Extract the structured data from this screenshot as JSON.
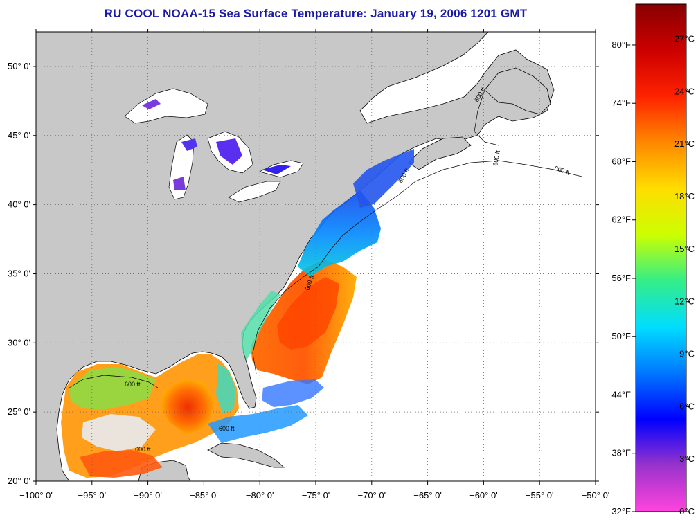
{
  "title": "RU COOL  NOAA-15  Sea Surface Temperature:  January 19, 2006 1201 GMT",
  "map": {
    "lon_range": [
      -100,
      -50
    ],
    "lat_range": [
      20,
      52.5
    ],
    "lon_ticks": [
      {
        "v": -100,
        "label": "−100° 0'"
      },
      {
        "v": -95,
        "label": "−95° 0'"
      },
      {
        "v": -90,
        "label": "−90° 0'"
      },
      {
        "v": -85,
        "label": "−85° 0'"
      },
      {
        "v": -80,
        "label": "−80° 0'"
      },
      {
        "v": -75,
        "label": "−75° 0'"
      },
      {
        "v": -70,
        "label": "−70° 0'"
      },
      {
        "v": -65,
        "label": "−65° 0'"
      },
      {
        "v": -60,
        "label": "−60° 0'"
      },
      {
        "v": -55,
        "label": "−55° 0'"
      },
      {
        "v": -50,
        "label": "−50° 0'"
      }
    ],
    "lat_ticks": [
      {
        "v": 50,
        "label": "50° 0'"
      },
      {
        "v": 45,
        "label": "45° 0'"
      },
      {
        "v": 40,
        "label": "40° 0'"
      },
      {
        "v": 35,
        "label": "35° 0'"
      },
      {
        "v": 30,
        "label": "30° 0'"
      },
      {
        "v": 25,
        "label": "25° 0'"
      },
      {
        "v": 20,
        "label": "20° 0'"
      }
    ],
    "land_color": "#c8c8c8",
    "grid": "dotted",
    "contour_label": "600 ft"
  },
  "colorbar": {
    "celsius_labels": [
      "27°C",
      "24°C",
      "21°C",
      "18°C",
      "15°C",
      "12°C",
      "9°C",
      "6°C",
      "3°C",
      "0°C"
    ],
    "fahrenheit_labels": [
      "80°F",
      "74°F",
      "68°F",
      "62°F",
      "56°F",
      "50°F",
      "44°F",
      "38°F",
      "32°F"
    ],
    "celsius_values": [
      27,
      24,
      21,
      18,
      15,
      12,
      9,
      6,
      3,
      0
    ],
    "fahrenheit_values": [
      80,
      74,
      68,
      62,
      56,
      50,
      44,
      38,
      32
    ],
    "range_c": [
      0,
      29
    ],
    "stops": [
      "#ff44dd",
      "#9933cc",
      "#0000ff",
      "#0077ff",
      "#00ddff",
      "#33ee88",
      "#ccff00",
      "#ffdd00",
      "#ff8800",
      "#ff2200",
      "#cc0000",
      "#880000"
    ]
  }
}
